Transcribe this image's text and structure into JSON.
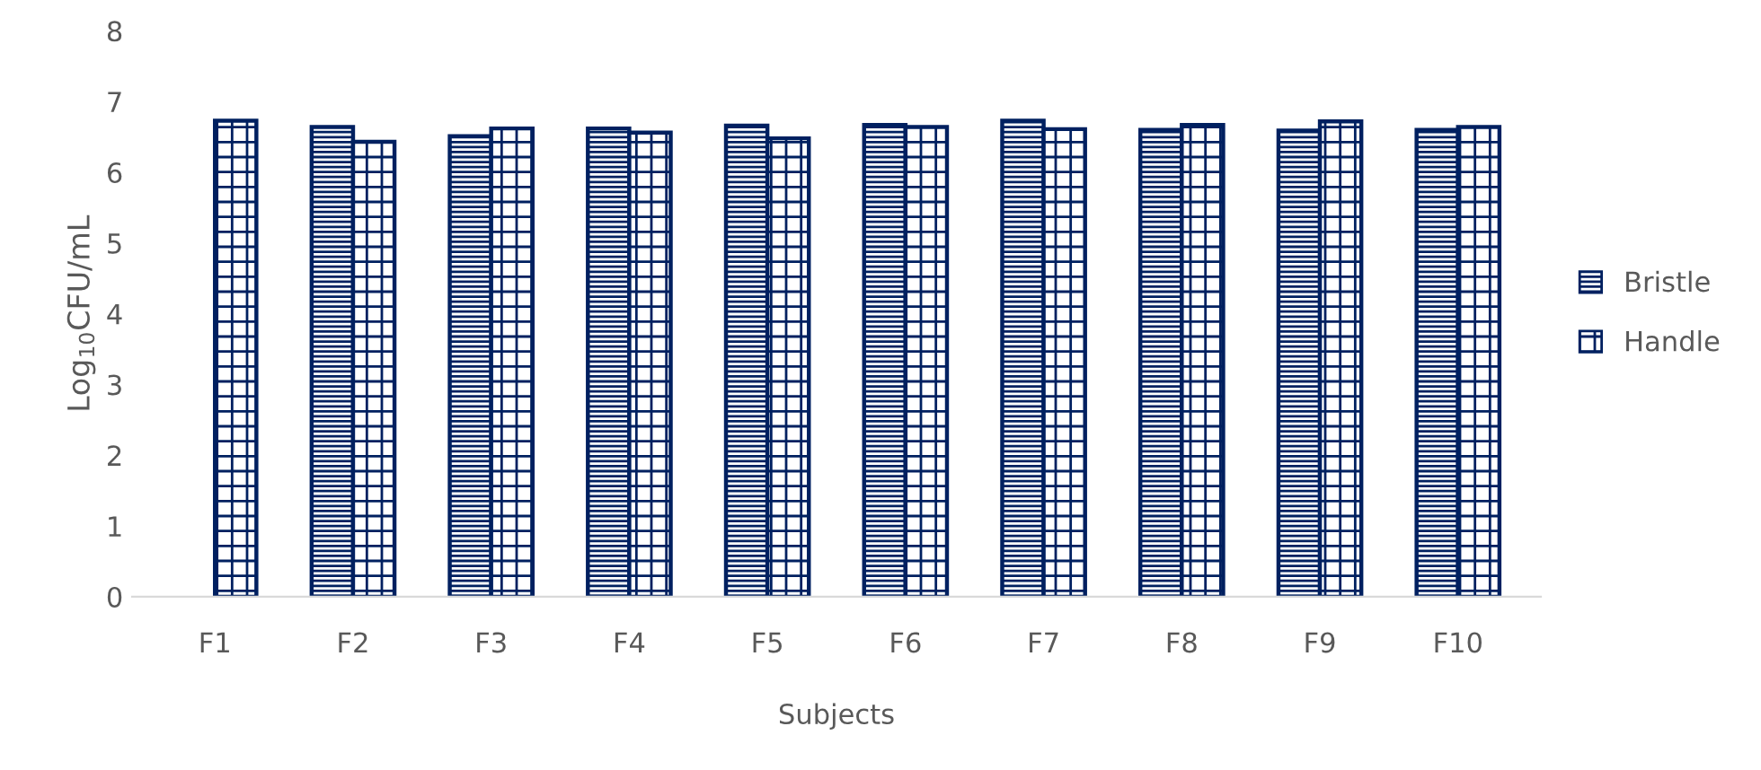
{
  "chart_data": {
    "type": "bar",
    "xlabel": "Subjects",
    "ylabel": "Log$_{10}$CFU/mL",
    "categories": [
      "F1",
      "F2",
      "F3",
      "F4",
      "F5",
      "F6",
      "F7",
      "F8",
      "F9",
      "F10"
    ],
    "series": [
      {
        "name": "Bristle",
        "color": "#002060",
        "values": [
          null,
          6.64,
          6.51,
          6.62,
          6.66,
          6.67,
          6.73,
          6.6,
          6.59,
          6.6
        ]
      },
      {
        "name": "Handle",
        "color": "#002060",
        "values": [
          6.73,
          6.43,
          6.62,
          6.56,
          6.48,
          6.64,
          6.61,
          6.67,
          6.72,
          6.64
        ]
      }
    ],
    "ylim": [
      0,
      8
    ],
    "yticks": [
      0,
      1,
      2,
      3,
      4,
      5,
      6,
      7,
      8
    ],
    "grid": false,
    "legend": "right"
  }
}
